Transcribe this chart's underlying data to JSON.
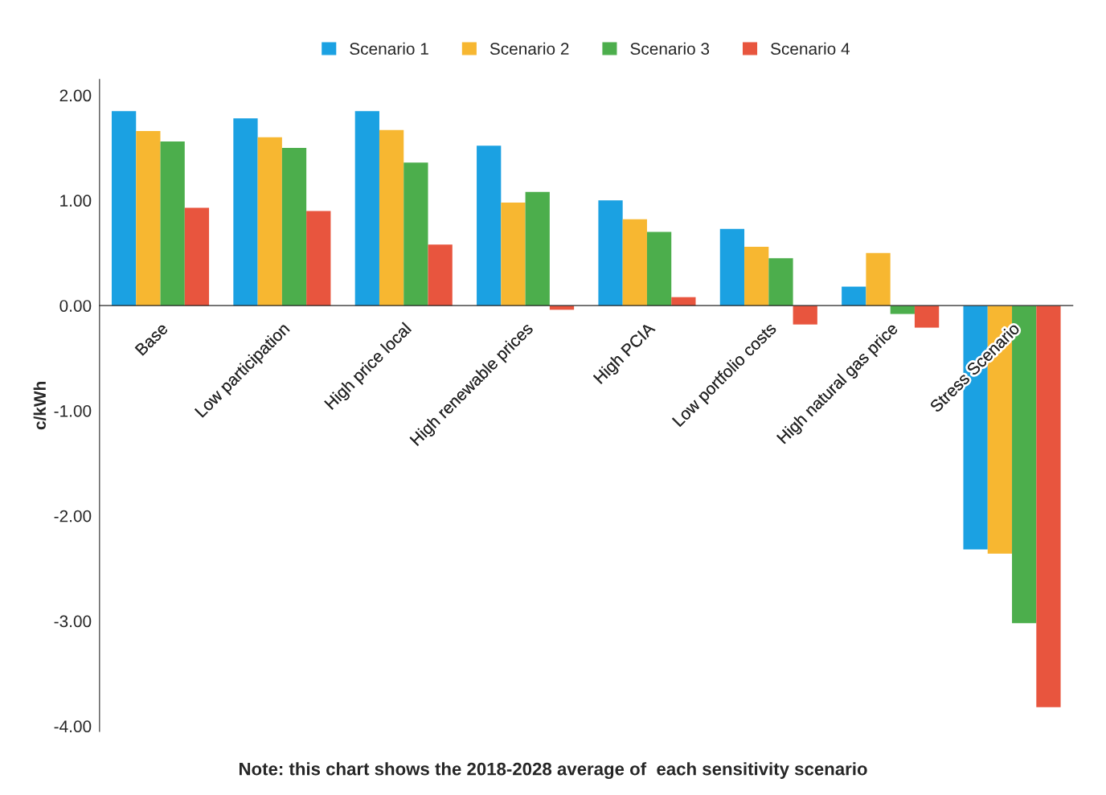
{
  "chart_data": {
    "type": "bar",
    "categories": [
      "Base",
      "Low participation",
      "High price local",
      "High renewable prices",
      "High PCIA",
      "Low portfolio costs",
      "High natural gas price",
      "Stress Scenario"
    ],
    "series": [
      {
        "name": "Scenario 1",
        "color": "#1ba1e2",
        "values": [
          1.85,
          1.78,
          1.85,
          1.52,
          1.0,
          0.73,
          0.18,
          -2.32
        ]
      },
      {
        "name": "Scenario 2",
        "color": "#f7b731",
        "values": [
          1.66,
          1.6,
          1.67,
          0.98,
          0.82,
          0.56,
          0.5,
          -2.36
        ]
      },
      {
        "name": "Scenario 3",
        "color": "#4cae4c",
        "values": [
          1.56,
          1.5,
          1.36,
          1.08,
          0.7,
          0.45,
          -0.08,
          -3.02
        ]
      },
      {
        "name": "Scenario 4",
        "color": "#e8553e",
        "values": [
          0.93,
          0.9,
          0.58,
          -0.04,
          0.08,
          -0.18,
          -0.21,
          -3.82
        ]
      }
    ],
    "ylabel": "c/kWh",
    "ylim": [
      -4.05,
      2.15
    ],
    "yticks": [
      {
        "value": 2,
        "label": "2.00"
      },
      {
        "value": 1,
        "label": "1.00"
      },
      {
        "value": 0,
        "label": "0.00"
      },
      {
        "value": -1,
        "label": "-1.00"
      },
      {
        "value": -2,
        "label": "-2.00"
      },
      {
        "value": -3,
        "label": "-3.00"
      },
      {
        "value": -4,
        "label": "-4.00"
      }
    ],
    "annotations": [
      "Note: this chart shows the 2018-2028 average of  each sensitivity scenario"
    ],
    "legend": "top",
    "grid": false
  }
}
